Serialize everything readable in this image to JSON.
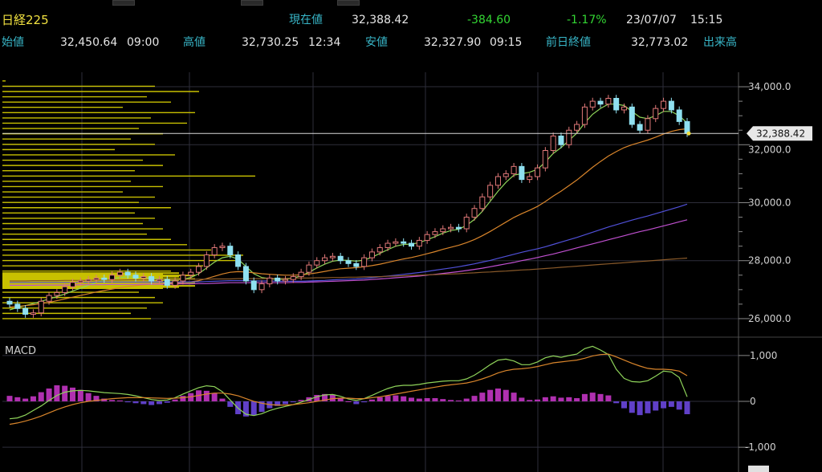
{
  "header": {
    "title": "日経225",
    "current_label": "現在値",
    "current_value": "32,388.42",
    "change": "-384.60",
    "change_pct": "-1.17%",
    "date": "23/07/07",
    "time": "15:15",
    "open_label": "始値",
    "open_value": "32,450.64",
    "open_time": "09:00",
    "high_label": "高値",
    "high_value": "32,730.25",
    "high_time": "12:34",
    "low_label": "安値",
    "low_value": "32,327.90",
    "low_time": "09:15",
    "prev_close_label": "前日終値",
    "prev_close_value": "32,773.02",
    "volume_label": "出来高"
  },
  "price_axis": {
    "ticks": [
      "34,000.0",
      "32,000.0",
      "30,000.0",
      "28,000.0",
      "26,000.0"
    ],
    "tick_values": [
      34000,
      32000,
      30000,
      28000,
      26000
    ],
    "current_tag": "32,388.42",
    "current_value": 32388.42
  },
  "macd_axis": {
    "label": "MACD",
    "ticks": [
      "1,000",
      "0",
      "-1,000"
    ],
    "tick_values": [
      1000,
      0,
      -1000
    ]
  },
  "colors": {
    "candle_up": "#e07878",
    "candle_down": "#8fe0f0",
    "ma_short": "#8fd45a",
    "ma_mid": "#d9852b",
    "ma_long1": "#5050d8",
    "ma_long2": "#c050d0",
    "ma_long3": "#8a5a2a",
    "volume_profile": "#c8c000",
    "macd_hist": "#b030b0",
    "macd_hist_neg": "#6040c8",
    "macd_line": "#8fd45a",
    "signal_line": "#d9852b",
    "grid": "#2e2e3a"
  },
  "chart_data": {
    "type": "candlestick",
    "closes": [
      26500,
      26350,
      26150,
      26200,
      26600,
      26800,
      26900,
      27100,
      27250,
      27300,
      27350,
      27400,
      27350,
      27500,
      27600,
      27500,
      27400,
      27450,
      27300,
      27350,
      27150,
      27300,
      27500,
      27600,
      27800,
      28200,
      28450,
      28500,
      28200,
      27800,
      27300,
      27000,
      27200,
      27400,
      27300,
      27350,
      27450,
      27600,
      27850,
      28000,
      28100,
      28150,
      28000,
      27900,
      27800,
      28100,
      28300,
      28450,
      28600,
      28650,
      28600,
      28500,
      28700,
      28900,
      29000,
      29100,
      29150,
      29100,
      29500,
      29800,
      30200,
      30600,
      30900,
      31000,
      31250,
      30800,
      30900,
      31200,
      31800,
      32300,
      32000,
      32500,
      32700,
      33300,
      33500,
      33400,
      33600,
      33200,
      33300,
      32700,
      32500,
      32900,
      33250,
      33500,
      33200,
      32800,
      32388
    ],
    "volume_profile_note": "horizontal price-volume histogram on left",
    "series": [
      {
        "name": "MA short",
        "values": [
          26300,
          26380,
          26450,
          26520,
          26600,
          26680,
          26760,
          26850,
          26950,
          27050,
          27150,
          27250,
          27320,
          27380,
          27420,
          27440,
          27430,
          27420,
          27390,
          27360,
          27340,
          27330,
          27360,
          27420,
          27550,
          27750,
          27950,
          28100,
          28150,
          28050,
          27800,
          27550,
          27420,
          27380,
          27350,
          27360,
          27400,
          27480,
          27600,
          27750,
          27880,
          27980,
          28020,
          28010,
          27980,
          28020,
          28120,
          28250,
          28380,
          28500,
          28560,
          28570,
          28620,
          28720,
          28830,
          28950,
          29040,
          29080,
          29220,
          29420,
          29700,
          30050,
          30400,
          30700,
          30950,
          31000,
          31050,
          31150,
          31400,
          31700,
          31900,
          32150,
          32400,
          32750,
          33050,
          33250,
          33400,
          33400,
          33350,
          33150,
          32950,
          32900,
          33000,
          33150,
          33150,
          33000,
          32750
        ]
      },
      {
        "name": "MA mid",
        "values": [
          26400,
          26420,
          26450,
          26480,
          26520,
          26560,
          26620,
          26680,
          26740,
          26800,
          26860,
          26920,
          26970,
          27020,
          27070,
          27110,
          27140,
          27170,
          27190,
          27200,
          27210,
          27220,
          27240,
          27270,
          27310,
          27380,
          27460,
          27540,
          27600,
          27620,
          27610,
          27580,
          27550,
          27530,
          27510,
          27500,
          27500,
          27510,
          27540,
          27580,
          27630,
          27680,
          27720,
          27740,
          27760,
          27790,
          27830,
          27880,
          27940,
          28000,
          28060,
          28110,
          28170,
          28240,
          28310,
          28390,
          28460,
          28530,
          28620,
          28730,
          28860,
          29010,
          29170,
          29330,
          29490,
          29620,
          29740,
          29870,
          30040,
          30230,
          30400,
          30590,
          30780,
          31000,
          31220,
          31420,
          31610,
          31760,
          31900,
          32000,
          32080,
          32160,
          32260,
          32370,
          32460,
          32520,
          32550
        ]
      },
      {
        "name": "MA long 1",
        "values": [
          27250,
          27250,
          27250,
          27250,
          27250,
          27250,
          27250,
          27250,
          27250,
          27250,
          27250,
          27260,
          27260,
          27260,
          27260,
          27260,
          27260,
          27260,
          27260,
          27260,
          27260,
          27260,
          27260,
          27270,
          27270,
          27280,
          27290,
          27300,
          27310,
          27310,
          27310,
          27300,
          27300,
          27300,
          27290,
          27290,
          27290,
          27290,
          27300,
          27310,
          27320,
          27340,
          27350,
          27360,
          27370,
          27390,
          27410,
          27440,
          27470,
          27500,
          27530,
          27560,
          27590,
          27630,
          27670,
          27710,
          27750,
          27790,
          27840,
          27890,
          27950,
          28010,
          28080,
          28150,
          28220,
          28290,
          28350,
          28410,
          28480,
          28560,
          28640,
          28720,
          28800,
          28890,
          28980,
          29070,
          29160,
          29240,
          29320,
          29400,
          29470,
          29540,
          29620,
          29700,
          29780,
          29860,
          29950
        ]
      },
      {
        "name": "MA long 2",
        "values": [
          27150,
          27150,
          27150,
          27150,
          27160,
          27160,
          27160,
          27160,
          27160,
          27170,
          27170,
          27170,
          27170,
          27180,
          27180,
          27180,
          27180,
          27190,
          27190,
          27190,
          27190,
          27200,
          27200,
          27200,
          27210,
          27210,
          27220,
          27230,
          27240,
          27240,
          27240,
          27240,
          27240,
          27240,
          27240,
          27240,
          27250,
          27250,
          27260,
          27270,
          27280,
          27290,
          27300,
          27310,
          27320,
          27330,
          27350,
          27370,
          27390,
          27410,
          27430,
          27450,
          27470,
          27500,
          27530,
          27560,
          27590,
          27620,
          27660,
          27700,
          27740,
          27790,
          27840,
          27890,
          27940,
          28000,
          28050,
          28110,
          28170,
          28230,
          28300,
          28370,
          28440,
          28510,
          28580,
          28650,
          28720,
          28790,
          28860,
          28930,
          29000,
          29060,
          29130,
          29200,
          29270,
          29340,
          29410
        ]
      },
      {
        "name": "MA long 3",
        "values": [
          27300,
          27300,
          27300,
          27310,
          27310,
          27310,
          27310,
          27320,
          27320,
          27320,
          27320,
          27330,
          27330,
          27330,
          27330,
          27340,
          27340,
          27340,
          27340,
          27350,
          27350,
          27350,
          27350,
          27360,
          27360,
          27360,
          27370,
          27370,
          27370,
          27380,
          27380,
          27380,
          27380,
          27390,
          27390,
          27390,
          27400,
          27400,
          27400,
          27410,
          27410,
          27420,
          27420,
          27430,
          27430,
          27440,
          27440,
          27450,
          27460,
          27470,
          27480,
          27490,
          27500,
          27510,
          27520,
          27530,
          27540,
          27550,
          27570,
          27580,
          27600,
          27610,
          27630,
          27640,
          27660,
          27680,
          27690,
          27710,
          27730,
          27750,
          27770,
          27790,
          27810,
          27830,
          27850,
          27870,
          27890,
          27910,
          27930,
          27950,
          27970,
          27990,
          28010,
          28030,
          28050,
          28070,
          28090
        ]
      }
    ],
    "macd": {
      "hist": [
        120,
        90,
        60,
        110,
        200,
        280,
        350,
        340,
        300,
        250,
        180,
        120,
        60,
        30,
        20,
        -20,
        -40,
        -60,
        -80,
        -60,
        -30,
        40,
        120,
        180,
        240,
        230,
        180,
        60,
        -120,
        -280,
        -330,
        -300,
        -230,
        -150,
        -100,
        -60,
        -20,
        30,
        90,
        140,
        160,
        150,
        80,
        0,
        -60,
        -20,
        40,
        90,
        120,
        130,
        110,
        80,
        60,
        70,
        70,
        50,
        30,
        20,
        60,
        120,
        190,
        250,
        280,
        250,
        190,
        80,
        30,
        40,
        90,
        110,
        80,
        90,
        70,
        160,
        190,
        160,
        130,
        -40,
        -150,
        -250,
        -300,
        -260,
        -200,
        -150,
        -120,
        -180,
        -280
      ],
      "line": [
        -380,
        -360,
        -300,
        -200,
        -100,
        20,
        130,
        200,
        230,
        240,
        230,
        210,
        190,
        180,
        170,
        150,
        120,
        80,
        40,
        20,
        30,
        80,
        160,
        230,
        300,
        340,
        320,
        210,
        30,
        -150,
        -280,
        -310,
        -270,
        -200,
        -150,
        -110,
        -70,
        -20,
        40,
        100,
        140,
        150,
        110,
        50,
        20,
        60,
        130,
        210,
        280,
        330,
        350,
        350,
        370,
        400,
        420,
        440,
        450,
        450,
        490,
        570,
        680,
        800,
        900,
        920,
        880,
        800,
        800,
        860,
        950,
        990,
        960,
        1000,
        1030,
        1150,
        1200,
        1120,
        1020,
        700,
        500,
        430,
        420,
        450,
        550,
        660,
        640,
        520,
        100
      ],
      "signal": [
        -500,
        -470,
        -430,
        -380,
        -320,
        -250,
        -180,
        -120,
        -70,
        -30,
        0,
        20,
        40,
        60,
        70,
        80,
        80,
        80,
        75,
        70,
        65,
        70,
        80,
        100,
        130,
        160,
        180,
        180,
        160,
        120,
        60,
        0,
        -40,
        -70,
        -80,
        -80,
        -70,
        -50,
        -30,
        0,
        30,
        60,
        70,
        70,
        60,
        60,
        80,
        100,
        130,
        160,
        190,
        220,
        250,
        280,
        310,
        340,
        360,
        380,
        400,
        440,
        490,
        550,
        620,
        670,
        700,
        710,
        730,
        760,
        800,
        840,
        860,
        880,
        900,
        940,
        990,
        1020,
        1030,
        970,
        900,
        830,
        770,
        720,
        700,
        700,
        690,
        660,
        560
      ]
    }
  }
}
